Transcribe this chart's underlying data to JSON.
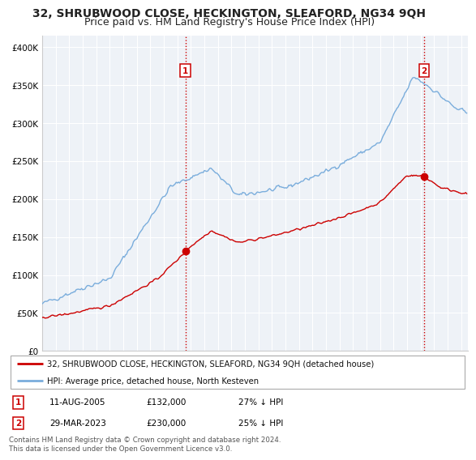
{
  "title": "32, SHRUBWOOD CLOSE, HECKINGTON, SLEAFORD, NG34 9QH",
  "subtitle": "Price paid vs. HM Land Registry's House Price Index (HPI)",
  "ylabel_ticks": [
    "£0",
    "£50K",
    "£100K",
    "£150K",
    "£200K",
    "£250K",
    "£300K",
    "£350K",
    "£400K"
  ],
  "ytick_values": [
    0,
    50000,
    100000,
    150000,
    200000,
    250000,
    300000,
    350000,
    400000
  ],
  "ylim": [
    0,
    415000
  ],
  "xlim_start": 1995.0,
  "xlim_end": 2026.5,
  "hpi_color": "#7aaddc",
  "price_color": "#cc0000",
  "marker1_x": 2005.6,
  "marker1_y": 132000,
  "marker2_x": 2023.25,
  "marker2_y": 230000,
  "vline_color": "#cc0000",
  "vline_style": ":",
  "legend_label1": "32, SHRUBWOOD CLOSE, HECKINGTON, SLEAFORD, NG34 9QH (detached house)",
  "legend_label2": "HPI: Average price, detached house, North Kesteven",
  "table_row1": [
    "1",
    "11-AUG-2005",
    "£132,000",
    "27% ↓ HPI"
  ],
  "table_row2": [
    "2",
    "29-MAR-2023",
    "£230,000",
    "25% ↓ HPI"
  ],
  "footer": "Contains HM Land Registry data © Crown copyright and database right 2024.\nThis data is licensed under the Open Government Licence v3.0.",
  "bg_color": "#ffffff",
  "plot_bg_color": "#eef2f7",
  "grid_color": "#ffffff",
  "title_fontsize": 10,
  "subtitle_fontsize": 9,
  "tick_fontsize": 7.5
}
